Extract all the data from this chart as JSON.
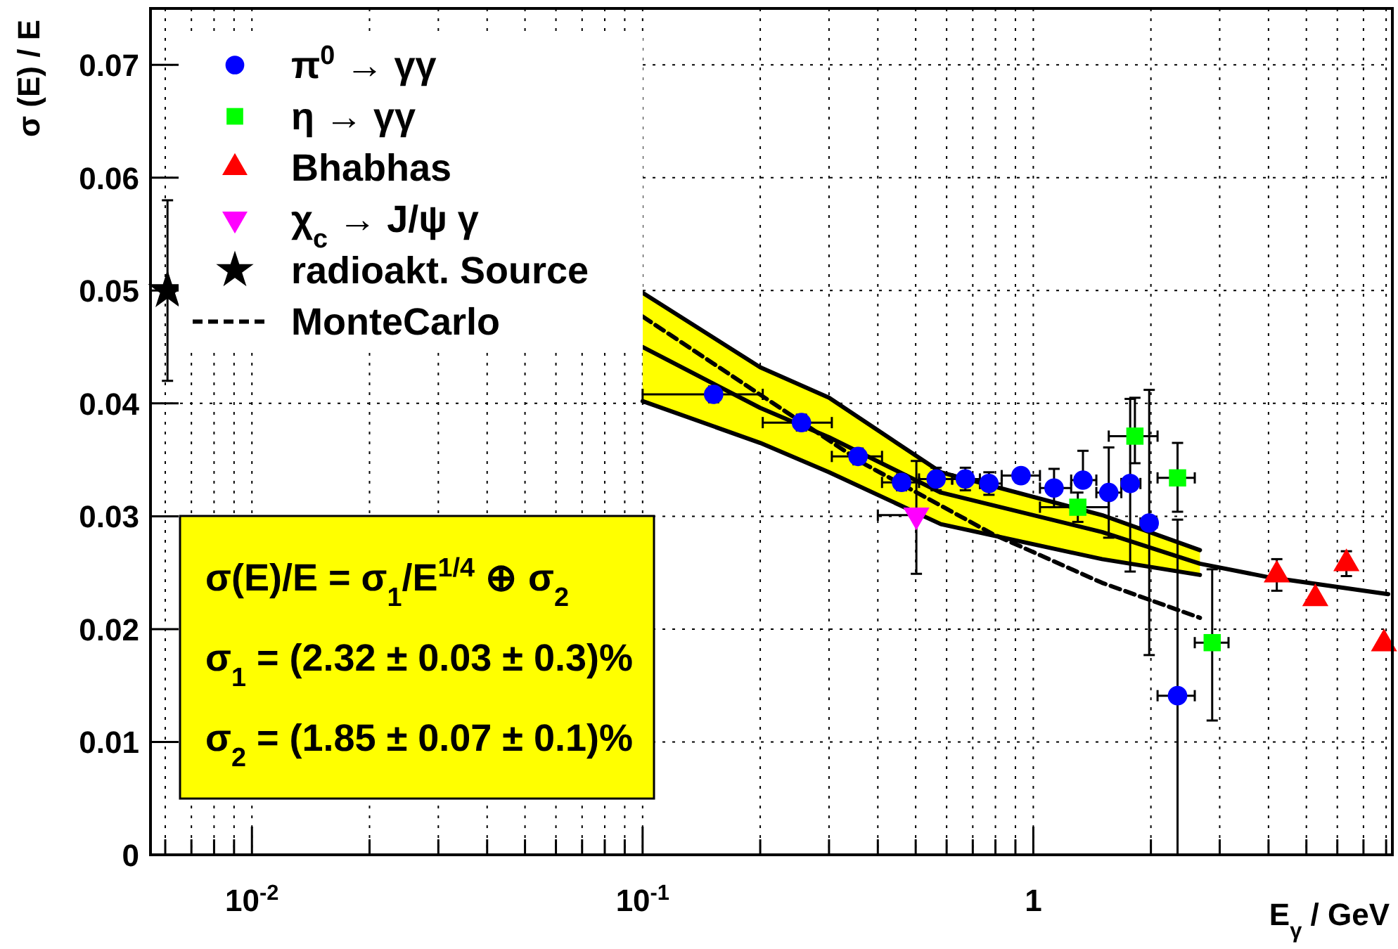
{
  "chart_data": {
    "type": "scatter",
    "xlabel": "E$_{γ}$ / GeV",
    "ylabel": "σ (E) / E",
    "log": "x",
    "grid": true,
    "legend": "top left",
    "xlim": [
      0.0055,
      8.3
    ],
    "ylim": [
      0,
      0.075
    ],
    "xticks": [
      {
        "value": 0.006,
        "label": null
      },
      {
        "value": 0.007,
        "label": null
      },
      {
        "value": 0.008,
        "label": null
      },
      {
        "value": 0.009,
        "label": null
      },
      {
        "value": 0.01,
        "label": "10$^{-2}$"
      },
      {
        "value": 0.02,
        "label": null
      },
      {
        "value": 0.03,
        "label": null
      },
      {
        "value": 0.04,
        "label": null
      },
      {
        "value": 0.05,
        "label": null
      },
      {
        "value": 0.06,
        "label": null
      },
      {
        "value": 0.07,
        "label": null
      },
      {
        "value": 0.08,
        "label": null
      },
      {
        "value": 0.09,
        "label": null
      },
      {
        "value": 0.1,
        "label": "10$^{-1}$"
      },
      {
        "value": 0.2,
        "label": null
      },
      {
        "value": 0.3,
        "label": null
      },
      {
        "value": 0.4,
        "label": null
      },
      {
        "value": 0.5,
        "label": null
      },
      {
        "value": 0.6,
        "label": null
      },
      {
        "value": 0.7,
        "label": null
      },
      {
        "value": 0.8,
        "label": null
      },
      {
        "value": 0.9,
        "label": null
      },
      1,
      {
        "value": 2,
        "label": null
      },
      {
        "value": 3,
        "label": null
      },
      {
        "value": 4,
        "label": null
      },
      {
        "value": 5,
        "label": null
      },
      {
        "value": 6,
        "label": null
      },
      {
        "value": 7,
        "label": null
      },
      {
        "value": 8,
        "label": null
      }
    ],
    "yticks": [
      0,
      0.01,
      0.02,
      0.03,
      0.04,
      0.05,
      0.06,
      0.07
    ],
    "annotations": [
      "σ(E)/E = σ$_{1}$/E$^{1/4}$ ⊕ σ$_{2}$",
      "σ$_{1}$ = (2.32 ± 0.03 ± 0.3)%",
      "σ$_{2}$ = (1.85 ± 0.07 ± 0.1)%"
    ],
    "series": [
      {
        "name": "π$^{0}$ → γγ",
        "marker": "circle",
        "color": "#0000ff",
        "x": [
          0.152,
          0.255,
          0.356,
          0.46,
          0.564,
          0.67,
          0.77,
          0.93,
          1.13,
          1.34,
          1.56,
          1.77,
          1.98,
          2.34
        ],
        "values": [
          0.0408,
          0.0383,
          0.0353,
          0.033,
          0.0333,
          0.0333,
          0.0329,
          0.0336,
          0.0325,
          0.0332,
          0.0321,
          0.0329,
          0.0294,
          0.0141
        ],
        "errors": [
          0.0007,
          0.0007,
          0.0007,
          0.0007,
          0.001,
          0.001,
          0.001,
          null,
          0.0017,
          [
            0.0332,
            0.0358
          ],
          [
            0.0281,
            0.0361
          ],
          [
            0.0251,
            0.0404
          ],
          [
            0.0177,
            0.0412
          ],
          [
            0,
            0.0297
          ]
        ],
        "xerrors": [
          [
            0.1,
            0.203
          ],
          [
            0.203,
            0.305
          ],
          [
            0.305,
            0.41
          ],
          [
            0.41,
            0.51
          ],
          [
            0.51,
            0.62
          ],
          [
            0.62,
            0.73
          ],
          [
            0.73,
            0.83
          ],
          [
            0.83,
            1.04
          ],
          [
            1.04,
            1.25
          ],
          [
            1.25,
            1.45
          ],
          [
            1.45,
            1.68
          ],
          [
            1.68,
            1.88
          ],
          [
            1.88,
            2.07
          ],
          [
            2.08,
            2.59
          ]
        ]
      },
      {
        "name": "η → γγ",
        "marker": "square",
        "color": "#00ff00",
        "x": [
          1.3,
          1.82,
          2.34,
          2.87
        ],
        "values": [
          0.0308,
          0.0371,
          0.0334,
          0.0188
        ],
        "errors": [
          0.0013,
          [
            0.0347,
            0.0405
          ],
          [
            0.0304,
            0.0365
          ],
          [
            0.0119,
            0.0253
          ]
        ],
        "xerrors": [
          [
            1.04,
            1.56
          ],
          [
            1.56,
            2.08
          ],
          [
            2.08,
            2.59
          ],
          [
            2.59,
            3.16
          ]
        ]
      },
      {
        "name": "Bhabhas",
        "marker": "triangle",
        "color": "#ff0000",
        "x": [
          4.2,
          5.27,
          6.33,
          7.9
        ],
        "values": [
          0.0248,
          0.0227,
          0.0258,
          0.0187
        ],
        "errors": [
          0.0014,
          null,
          0.0011,
          null
        ]
      },
      {
        "name": "χ$_{c}$ → J/ψ γ",
        "marker": "triangle-down",
        "color": "#ff00ff",
        "x": [
          0.502
        ],
        "values": [
          0.0301
        ],
        "errors": [
          [
            0.0249,
            0.0349
          ]
        ],
        "xerrors": [
          [
            0.4,
            0.51
          ]
        ]
      },
      {
        "name": "radioakt. Source",
        "marker": "star",
        "color": "#000000",
        "x": [
          0.00608
        ],
        "values": [
          0.05
        ],
        "errors": [
          [
            0.042,
            0.058
          ]
        ]
      },
      {
        "name": "MonteCarlo",
        "type": "line",
        "line_style": "dashed",
        "color": "#000000",
        "x": [
          0.1,
          0.371,
          0.79,
          1.5,
          2.67
        ],
        "values": [
          0.0477,
          0.0346,
          0.0284,
          0.0241,
          0.021
        ]
      },
      {
        "type": "line",
        "line_style": "solid",
        "color": "#000000",
        "x": [
          0.1,
          0.2,
          0.3,
          0.58,
          1.5,
          2.67,
          4,
          8.1
        ],
        "values": [
          0.045,
          0.0396,
          0.037,
          0.0321,
          0.0286,
          0.0258,
          0.0246,
          0.0231
        ],
        "upper": [
          0.0498,
          0.0432,
          0.0405,
          0.0339,
          0.0301,
          0.027,
          null,
          null
        ],
        "lower": [
          0.0402,
          0.0365,
          0.0339,
          0.0293,
          0.0262,
          0.0248,
          null,
          null
        ]
      },
      {
        "type": "line",
        "line_style": "solid",
        "color": "#000000",
        "x": [
          0.1,
          0.2,
          0.3,
          0.58,
          1.5,
          2.67
        ],
        "values": [
          0.0498,
          0.0432,
          0.0405,
          0.0339,
          0.0301,
          0.027
        ]
      },
      {
        "type": "line",
        "line_style": "solid",
        "color": "#000000",
        "x": [
          0.1,
          0.2,
          0.3,
          0.58,
          1.5,
          2.67
        ],
        "values": [
          0.0402,
          0.0365,
          0.0339,
          0.0293,
          0.0262,
          0.0248
        ]
      }
    ]
  }
}
